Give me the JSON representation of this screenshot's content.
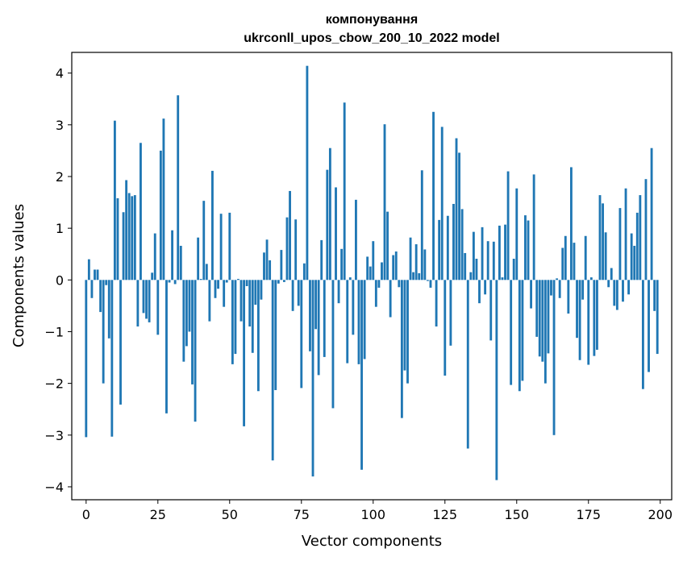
{
  "chart_data": {
    "type": "bar",
    "title": "компонування",
    "subtitle": "ukrconll_upos_cbow_200_10_2022 model",
    "xlabel": "Vector components",
    "ylabel": "Components values",
    "xlim": [
      -5,
      204
    ],
    "ylim": [
      -4.25,
      4.4
    ],
    "xticks": [
      0,
      25,
      50,
      75,
      100,
      125,
      150,
      175,
      200
    ],
    "yticks": [
      -4,
      -3,
      -2,
      -1,
      0,
      1,
      2,
      3,
      4
    ],
    "xtick_labels": [
      "0",
      "25",
      "50",
      "75",
      "100",
      "125",
      "150",
      "175",
      "200"
    ],
    "ytick_labels": [
      "−4",
      "−3",
      "−2",
      "−1",
      "0",
      "1",
      "2",
      "3",
      "4"
    ],
    "bar_color": "#1f77b4",
    "grid": false,
    "x": [
      0,
      1,
      2,
      3,
      4,
      5,
      6,
      7,
      8,
      9,
      10,
      11,
      12,
      13,
      14,
      15,
      16,
      17,
      18,
      19,
      20,
      21,
      22,
      23,
      24,
      25,
      26,
      27,
      28,
      29,
      30,
      31,
      32,
      33,
      34,
      35,
      36,
      37,
      38,
      39,
      40,
      41,
      42,
      43,
      44,
      45,
      46,
      47,
      48,
      49,
      50,
      51,
      52,
      53,
      54,
      55,
      56,
      57,
      58,
      59,
      60,
      61,
      62,
      63,
      64,
      65,
      66,
      67,
      68,
      69,
      70,
      71,
      72,
      73,
      74,
      75,
      76,
      77,
      78,
      79,
      80,
      81,
      82,
      83,
      84,
      85,
      86,
      87,
      88,
      89,
      90,
      91,
      92,
      93,
      94,
      95,
      96,
      97,
      98,
      99,
      100,
      101,
      102,
      103,
      104,
      105,
      106,
      107,
      108,
      109,
      110,
      111,
      112,
      113,
      114,
      115,
      116,
      117,
      118,
      119,
      120,
      121,
      122,
      123,
      124,
      125,
      126,
      127,
      128,
      129,
      130,
      131,
      132,
      133,
      134,
      135,
      136,
      137,
      138,
      139,
      140,
      141,
      142,
      143,
      144,
      145,
      146,
      147,
      148,
      149,
      150,
      151,
      152,
      153,
      154,
      155,
      156,
      157,
      158,
      159,
      160,
      161,
      162,
      163,
      164,
      165,
      166,
      167,
      168,
      169,
      170,
      171,
      172,
      173,
      174,
      175,
      176,
      177,
      178,
      179,
      180,
      181,
      182,
      183,
      184,
      185,
      186,
      187,
      188,
      189,
      190,
      191,
      192,
      193,
      194,
      195,
      196,
      197,
      198,
      199
    ],
    "values": [
      -3.04,
      0.4,
      -0.35,
      0.2,
      0.2,
      -0.62,
      -2.0,
      -0.1,
      -1.13,
      -3.03,
      3.08,
      1.58,
      -2.41,
      1.31,
      1.93,
      1.68,
      1.62,
      1.64,
      -0.9,
      2.65,
      -0.64,
      -0.75,
      -0.82,
      0.14,
      0.9,
      -1.06,
      2.5,
      3.12,
      -2.58,
      -0.05,
      0.96,
      -0.08,
      3.57,
      0.66,
      -1.58,
      -1.28,
      -1.0,
      -2.02,
      -2.74,
      0.82,
      0.02,
      1.53,
      0.31,
      -0.8,
      2.11,
      -0.35,
      -0.17,
      1.28,
      -0.52,
      -0.05,
      1.3,
      -1.63,
      -1.43,
      0.02,
      -0.8,
      -2.83,
      -0.12,
      -0.9,
      -1.41,
      -0.48,
      -2.15,
      -0.38,
      0.53,
      0.78,
      0.38,
      -3.49,
      -2.13,
      -0.07,
      0.58,
      -0.04,
      1.21,
      1.72,
      -0.6,
      1.17,
      -0.5,
      -2.09,
      0.32,
      4.14,
      -1.38,
      -3.8,
      -0.95,
      -1.84,
      0.77,
      -1.49,
      2.13,
      2.55,
      -2.48,
      1.79,
      -0.45,
      0.6,
      3.43,
      -1.61,
      0.05,
      -1.06,
      1.55,
      -1.63,
      -3.67,
      -1.53,
      0.45,
      0.26,
      0.75,
      -0.52,
      -0.15,
      0.34,
      3.01,
      1.32,
      -0.72,
      0.48,
      0.55,
      -0.14,
      -2.67,
      -1.75,
      -2.0,
      0.82,
      0.15,
      0.69,
      0.13,
      2.12,
      0.59,
      -0.02,
      -0.15,
      3.25,
      -0.9,
      1.16,
      2.96,
      -1.85,
      1.24,
      -1.27,
      1.47,
      2.74,
      2.46,
      1.37,
      0.52,
      -3.26,
      0.15,
      0.93,
      0.41,
      -0.45,
      1.02,
      -0.28,
      0.75,
      -1.17,
      0.74,
      -3.87,
      1.05,
      0.05,
      1.07,
      2.1,
      -2.03,
      0.41,
      1.77,
      -2.15,
      -1.95,
      1.25,
      1.15,
      -0.55,
      2.04,
      -1.1,
      -1.48,
      -1.58,
      -2.0,
      -1.42,
      -0.3,
      -3.0,
      0.03,
      -0.35,
      0.62,
      0.85,
      -0.65,
      2.18,
      0.72,
      -1.12,
      -1.55,
      -0.38,
      0.85,
      -1.64,
      0.05,
      -1.47,
      -1.35,
      1.64,
      1.48,
      0.92,
      -0.14,
      0.23,
      -0.5,
      -0.58,
      1.39,
      -0.42,
      1.77,
      -0.28,
      0.9,
      0.66,
      1.3,
      1.64,
      -2.11,
      1.95,
      -1.78,
      2.55,
      -0.6,
      -1.43
    ]
  }
}
